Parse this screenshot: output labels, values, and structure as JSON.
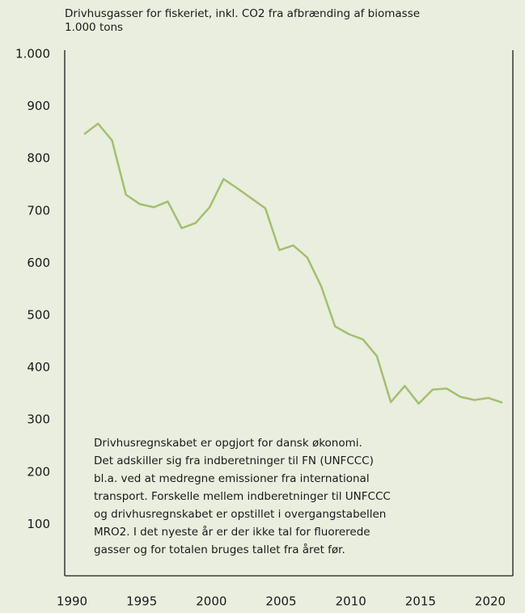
{
  "chart_data": {
    "type": "line",
    "title": "Drivhusgasser for fiskeriet, inkl. CO2 fra afbrænding af biomasse",
    "subtitle": "1.000 tons",
    "x": [
      1990,
      1991,
      1992,
      1993,
      1994,
      1995,
      1996,
      1997,
      1998,
      1999,
      2000,
      2001,
      2002,
      2003,
      2004,
      2005,
      2006,
      2007,
      2008,
      2009,
      2010,
      2011,
      2012,
      2013,
      2014,
      2015,
      2016,
      2017,
      2018,
      2019,
      2020
    ],
    "series": [
      {
        "name": "Drivhusgasser for fiskeriet",
        "color": "#a4bf6e",
        "values": [
          847,
          867,
          835,
          731,
          713,
          707,
          718,
          667,
          677,
          707,
          761,
          743,
          724,
          705,
          625,
          634,
          611,
          556,
          479,
          464,
          454,
          422,
          334,
          365,
          331,
          358,
          360,
          344,
          338,
          342,
          333
        ]
      }
    ],
    "xlim": [
      1990,
      2020
    ],
    "xticks": [
      1990,
      1995,
      2000,
      2005,
      2010,
      2015,
      2020
    ],
    "ylim": [
      0,
      1000
    ],
    "yticks": [
      100,
      200,
      300,
      400,
      500,
      600,
      700,
      800,
      900,
      {
        "value": 1000,
        "label": "1.000"
      }
    ],
    "grid": false,
    "annotation": [
      "Drivhusregnskabet er opgjort for dansk økonomi.",
      "Det adskiller sig fra indberetninger til FN (UNFCCC)",
      "bl.a. ved at medregne emissioner fra international",
      "transport. Forskelle mellem indberetninger til UNFCCC",
      "og drivhusregnskabet er opstillet i overgangstabellen",
      "MRO2. I det nyeste år er der ikke tal for fluorerede",
      "gasser og for totalen bruges tallet fra året før."
    ]
  }
}
